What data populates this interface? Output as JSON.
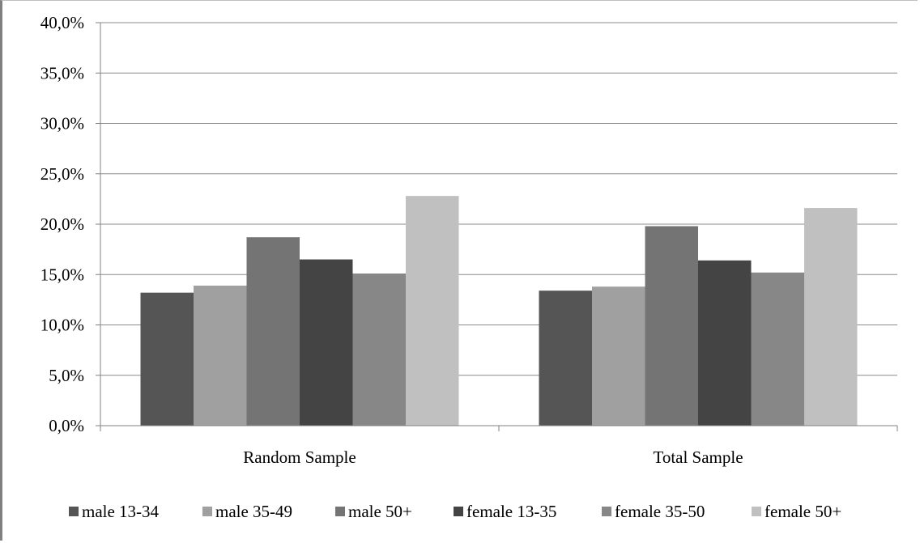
{
  "chart_data": {
    "type": "bar",
    "categories": [
      "Random Sample",
      "Total Sample"
    ],
    "series": [
      {
        "name": "male 13-34",
        "color": "#555555",
        "values": [
          13.2,
          13.4
        ]
      },
      {
        "name": "male 35-49",
        "color": "#a0a0a0",
        "values": [
          13.9,
          13.8
        ]
      },
      {
        "name": "male 50+",
        "color": "#747474",
        "values": [
          18.7,
          19.8
        ]
      },
      {
        "name": "female 13-35",
        "color": "#444444",
        "values": [
          16.5,
          16.4
        ]
      },
      {
        "name": "female 35-50",
        "color": "#878787",
        "values": [
          15.1,
          15.2
        ]
      },
      {
        "name": "female 50+",
        "color": "#c0c0c0",
        "values": [
          22.8,
          21.6
        ]
      }
    ],
    "yticks": [
      "0,0%",
      "5,0%",
      "10,0%",
      "15,0%",
      "20,0%",
      "25,0%",
      "30,0%",
      "35,0%",
      "40,0%"
    ],
    "ylim": [
      0,
      40
    ],
    "grid": true,
    "legend_position": "bottom",
    "title": "",
    "xlabel": "",
    "ylabel": ""
  }
}
